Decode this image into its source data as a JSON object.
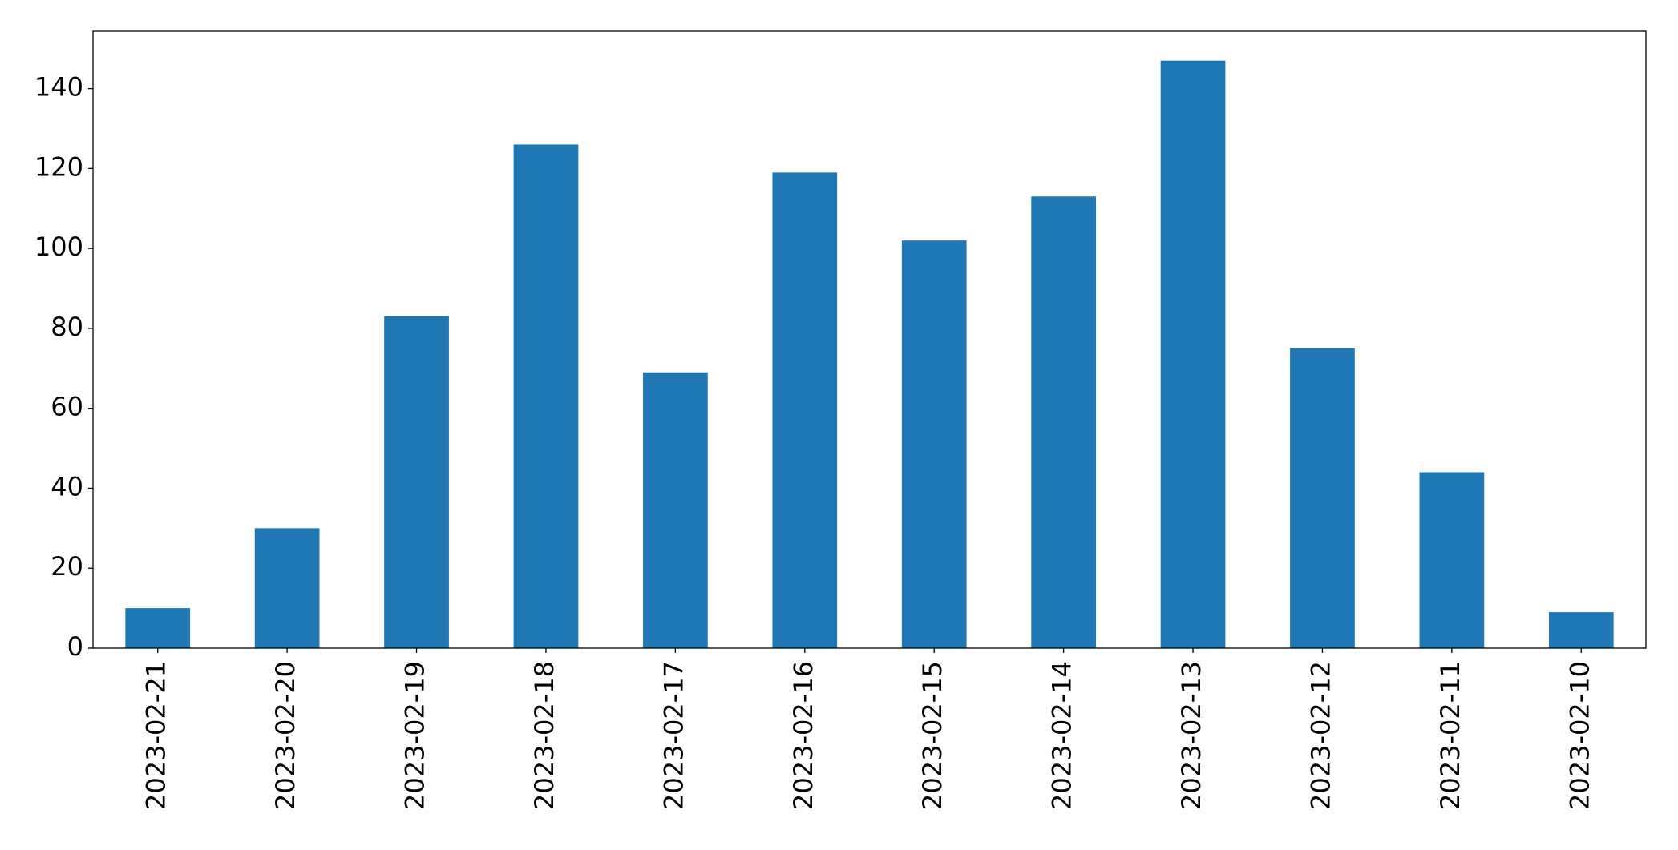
{
  "chart_data": {
    "type": "bar",
    "categories": [
      "2023-02-21",
      "2023-02-20",
      "2023-02-19",
      "2023-02-18",
      "2023-02-17",
      "2023-02-16",
      "2023-02-15",
      "2023-02-14",
      "2023-02-13",
      "2023-02-12",
      "2023-02-11",
      "2023-02-10"
    ],
    "values": [
      10,
      30,
      83,
      126,
      69,
      119,
      102,
      113,
      147,
      75,
      44,
      9
    ],
    "color": "#1f77b4",
    "ylim": [
      0,
      154.35
    ],
    "yticks": [
      0,
      20,
      40,
      60,
      80,
      100,
      120,
      140
    ],
    "grid": false
  }
}
